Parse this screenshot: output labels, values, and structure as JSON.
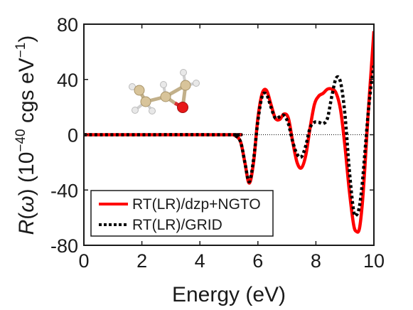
{
  "chart_data": {
    "type": "line",
    "xlabel": "Energy (eV)",
    "ylabel_parts": {
      "symbol": "R",
      "lparen": "(",
      "omega": "ω",
      "rparen": ")",
      "units_open": " (10",
      "units_exp": "−40",
      "units_mid": " cgs eV",
      "units_exp2": "−1",
      "units_close": ")"
    },
    "xlim": [
      0,
      10
    ],
    "ylim": [
      -80,
      80
    ],
    "xticks": [
      0,
      2,
      4,
      6,
      8,
      10
    ],
    "yticks": [
      -80,
      -40,
      0,
      40,
      80
    ],
    "zero_line": true,
    "grid": false,
    "legend_position": "bottom-left",
    "inset": "molecule-structure",
    "series": [
      {
        "name": "RT(LR)/dzp+NGTO",
        "color": "#ff0000",
        "style": "solid",
        "x": [
          0,
          5.0,
          5.2,
          5.4,
          5.55,
          5.7,
          5.85,
          6.0,
          6.15,
          6.3,
          6.45,
          6.6,
          6.75,
          6.9,
          7.05,
          7.2,
          7.35,
          7.5,
          7.65,
          7.8,
          7.95,
          8.1,
          8.25,
          8.4,
          8.55,
          8.7,
          8.85,
          9.0,
          9.15,
          9.3,
          9.4,
          9.5,
          9.6,
          9.7,
          9.8,
          9.9,
          10.0
        ],
        "y": [
          0,
          0,
          -0.5,
          -5,
          -20,
          -35,
          -20,
          12,
          30,
          32,
          22,
          12,
          11,
          15,
          12,
          -5,
          -20,
          -24,
          -15,
          5,
          22,
          28,
          30,
          33,
          33,
          30,
          18,
          -8,
          -40,
          -65,
          -70,
          -68,
          -50,
          -20,
          15,
          45,
          75
        ]
      },
      {
        "name": "RT(LR)/GRID",
        "color": "#000000",
        "style": "dotted",
        "x": [
          0,
          5.0,
          5.2,
          5.4,
          5.55,
          5.7,
          5.85,
          6.0,
          6.15,
          6.3,
          6.45,
          6.6,
          6.75,
          6.9,
          7.05,
          7.2,
          7.35,
          7.5,
          7.65,
          7.8,
          7.95,
          8.1,
          8.25,
          8.4,
          8.55,
          8.7,
          8.85,
          9.0,
          9.15,
          9.3,
          9.4,
          9.5,
          9.6,
          9.7,
          9.8,
          9.9,
          10.0
        ],
        "y": [
          0,
          0,
          -0.5,
          -5,
          -20,
          -34,
          -18,
          10,
          28,
          29,
          20,
          12,
          13,
          14,
          8,
          -5,
          -14,
          -16,
          -8,
          5,
          9,
          9,
          8,
          12,
          28,
          41,
          38,
          15,
          -25,
          -55,
          -58,
          -52,
          -35,
          -10,
          15,
          35,
          50
        ]
      }
    ]
  }
}
